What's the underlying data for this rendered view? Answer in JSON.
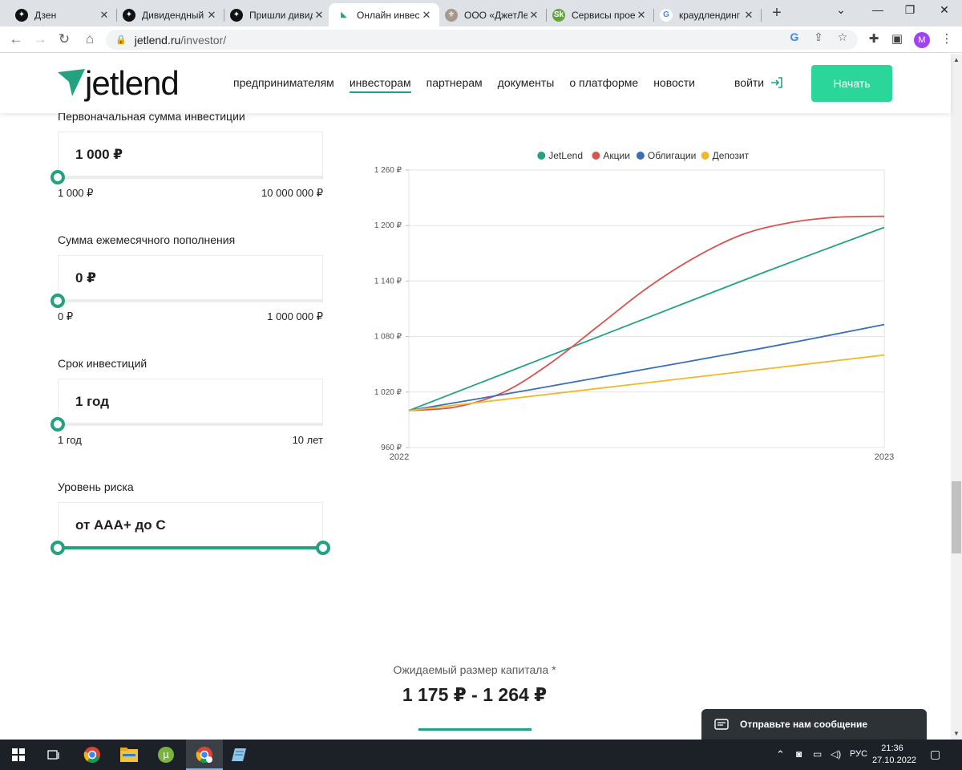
{
  "browser": {
    "tabs": [
      {
        "title": "Дзен",
        "icon": "dzen-icon",
        "active": false
      },
      {
        "title": "Дивидендный",
        "icon": "dzen-icon",
        "active": false
      },
      {
        "title": "Пришли дивид",
        "icon": "dzen-icon",
        "active": false
      },
      {
        "title": "Онлайн инвес",
        "icon": "jetlend-icon",
        "active": true
      },
      {
        "title": "ООО «ДжетЛе",
        "icon": "emblem-icon",
        "active": false
      },
      {
        "title": "Сервисы прое",
        "icon": "sk-icon",
        "active": false
      },
      {
        "title": "краудлендинг",
        "icon": "google-icon",
        "active": false
      }
    ],
    "url_host": "jetlend.ru",
    "url_path": "/investor/",
    "profile_initial": "M"
  },
  "site": {
    "logo_text": "jetlend",
    "nav": [
      "предпринимателям",
      "инвесторам",
      "партнерам",
      "документы",
      "о платформе",
      "новости"
    ],
    "nav_active": "инвесторам",
    "login_label": "войти",
    "start_label": "Начать"
  },
  "calculator": {
    "fields": [
      {
        "label": "Первоначальная сумма инвестиции",
        "value": "1 000 ₽",
        "min": "1 000 ₽",
        "max": "10 000 000 ₽",
        "position": 0
      },
      {
        "label": "Сумма ежемесячного пополнения",
        "value": "0 ₽",
        "min": "0 ₽",
        "max": "1 000 000 ₽",
        "position": 0
      },
      {
        "label": "Срок инвестиций",
        "value": "1 год",
        "min": "1 год",
        "max": "10 лет",
        "position": 0
      },
      {
        "label": "Уровень риска",
        "value": "от AAA+ до C",
        "range": [
          0,
          1
        ]
      }
    ]
  },
  "chart_data": {
    "type": "line",
    "title": "",
    "xlabel": "",
    "ylabel": "",
    "x_tick_labels": [
      "2022",
      "2023"
    ],
    "y_ticks": [
      960,
      1020,
      1080,
      1140,
      1200,
      1260
    ],
    "y_tick_labels": [
      "960 ₽",
      "1 020 ₽",
      "1 080 ₽",
      "1 140 ₽",
      "1 200 ₽",
      "1 260 ₽"
    ],
    "ylim": [
      960,
      1260
    ],
    "grid": true,
    "legend_position": "top-center",
    "series": [
      {
        "name": "JetLend",
        "color": "#23a282",
        "x": [
          0,
          0.25,
          0.5,
          0.75,
          1
        ],
        "y": [
          1000,
          1050,
          1100,
          1150,
          1198
        ]
      },
      {
        "name": "Акции",
        "color": "#d9534f",
        "x": [
          0,
          0.1,
          0.2,
          0.3,
          0.4,
          0.5,
          0.6,
          0.7,
          0.8,
          0.9,
          1
        ],
        "y": [
          1000,
          1004,
          1020,
          1052,
          1092,
          1132,
          1165,
          1190,
          1203,
          1209,
          1210
        ]
      },
      {
        "name": "Облигации",
        "color": "#3b6fb6",
        "x": [
          0,
          0.25,
          0.5,
          0.75,
          1
        ],
        "y": [
          1000,
          1022,
          1045,
          1068,
          1093
        ]
      },
      {
        "name": "Депозит",
        "color": "#f0b92a",
        "x": [
          0,
          0.25,
          0.5,
          0.75,
          1
        ],
        "y": [
          1000,
          1015,
          1030,
          1045,
          1060
        ]
      }
    ]
  },
  "result": {
    "caption": "Ожидаемый размер капитала *",
    "value": "1 175 ₽ - 1 264 ₽"
  },
  "chat": {
    "label": "Отправьте нам сообщение"
  },
  "taskbar": {
    "language": "РУС",
    "time": "21:36",
    "date": "27.10.2022"
  }
}
